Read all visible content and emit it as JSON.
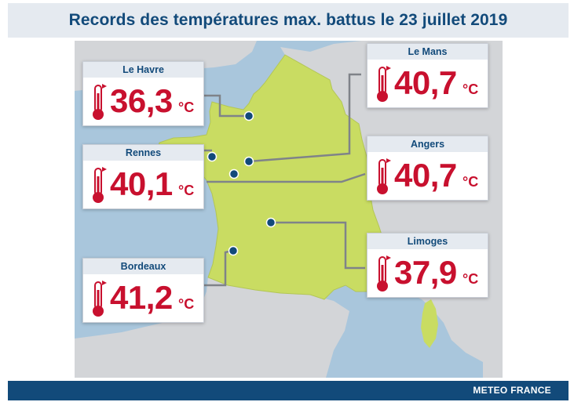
{
  "title": "Records des températures max. battus le 23 juillet 2019",
  "footer": "METEO FRANCE",
  "colors": {
    "header_band": "#e5eaf0",
    "title_text": "#124a7a",
    "footer_band": "#124a7a",
    "sea": "#a9c6dc",
    "neighbour_land": "#d3d5d8",
    "france_land": "#c9dc62",
    "connector": "#7f8389",
    "city_dot": "#124a7a",
    "temperature": "#c8102e"
  },
  "unit": "°C",
  "records": [
    {
      "city": "Le Havre",
      "value": "36,3"
    },
    {
      "city": "Rennes",
      "value": "40,1"
    },
    {
      "city": "Bordeaux",
      "value": "41,2"
    },
    {
      "city": "Le Mans",
      "value": "40,7"
    },
    {
      "city": "Angers",
      "value": "40,7"
    },
    {
      "city": "Limoges",
      "value": "37,9"
    }
  ],
  "icons": [
    "thermometer-icon",
    "city-marker-icon"
  ]
}
